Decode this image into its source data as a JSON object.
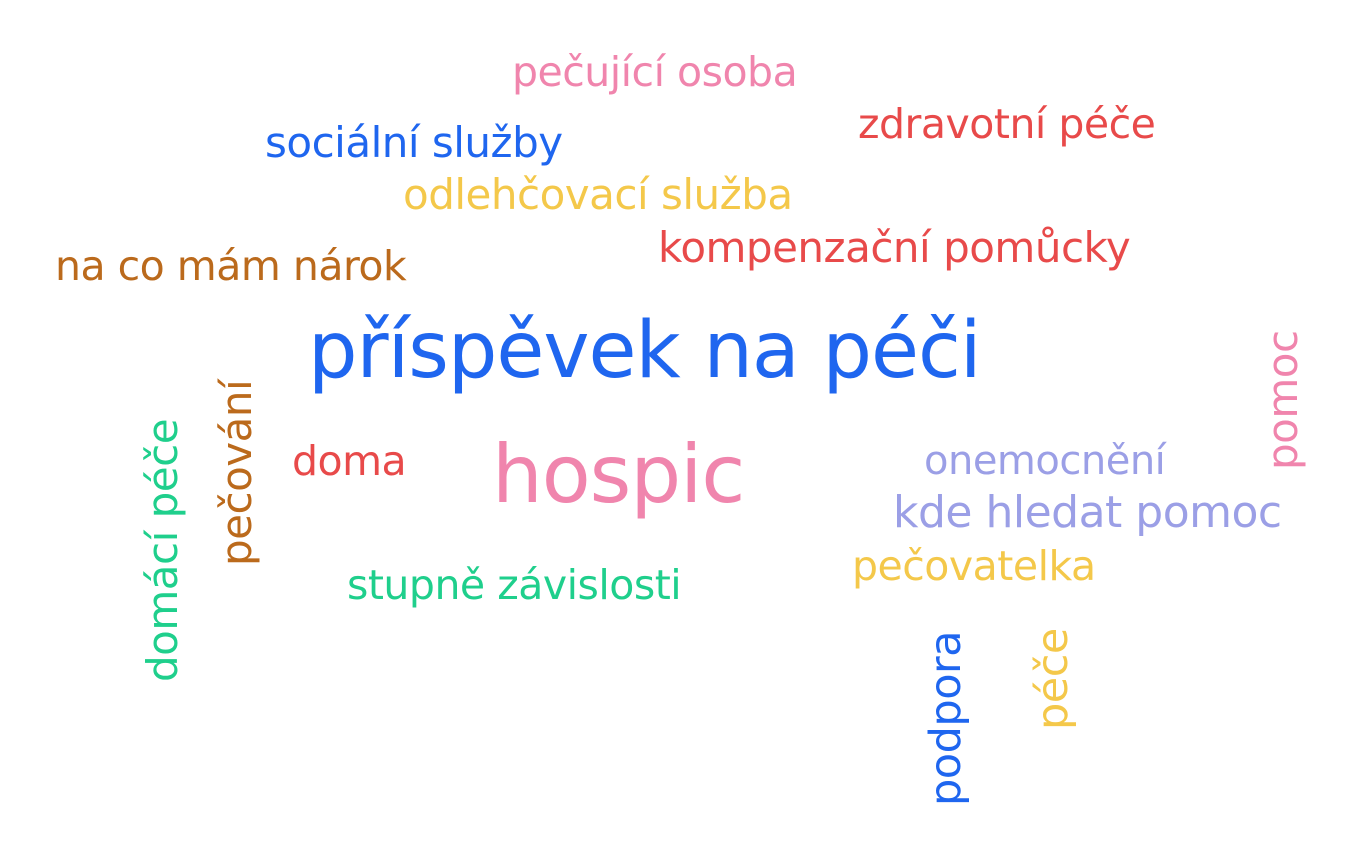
{
  "palette": {
    "blue": "#1f66ef",
    "pink": "#f085ad",
    "red": "#e84a4a",
    "yellow": "#f4c84a",
    "brown": "#bb6a1c",
    "green": "#1fcf8c",
    "lavender": "#9b9fe6"
  },
  "words": {
    "pecujici_osoba": {
      "text": "pečující osoba",
      "color": "pink"
    },
    "zdravotni_pece": {
      "text": "zdravotní péče",
      "color": "red"
    },
    "socialni_sluzby": {
      "text": "sociální služby",
      "color": "blue"
    },
    "odlehcovaci_sluzba": {
      "text": "odlehčovací služba",
      "color": "yellow"
    },
    "kompenzacni_pomucky": {
      "text": "kompenzační pomůcky",
      "color": "red"
    },
    "na_co_mam_narok": {
      "text": "na co mám nárok",
      "color": "brown"
    },
    "prispevek_na_peci": {
      "text": "příspěvek na péči",
      "color": "blue"
    },
    "doma": {
      "text": "doma",
      "color": "red"
    },
    "hospic": {
      "text": "hospic",
      "color": "pink"
    },
    "onemocneni": {
      "text": "onemocnění",
      "color": "lavender"
    },
    "kde_hledat_pomoc": {
      "text": "kde hledat pomoc",
      "color": "lavender"
    },
    "pecovatelka": {
      "text": "pečovatelka",
      "color": "yellow"
    },
    "stupne_zavislosti": {
      "text": "stupně závislosti",
      "color": "green"
    },
    "domaci_pece": {
      "text": "domácí péče",
      "color": "green"
    },
    "pecovani": {
      "text": "pečování",
      "color": "brown"
    },
    "pomoc": {
      "text": "pomoc",
      "color": "pink"
    },
    "podpora": {
      "text": "podpora",
      "color": "blue"
    },
    "pece": {
      "text": "péče",
      "color": "yellow"
    }
  }
}
